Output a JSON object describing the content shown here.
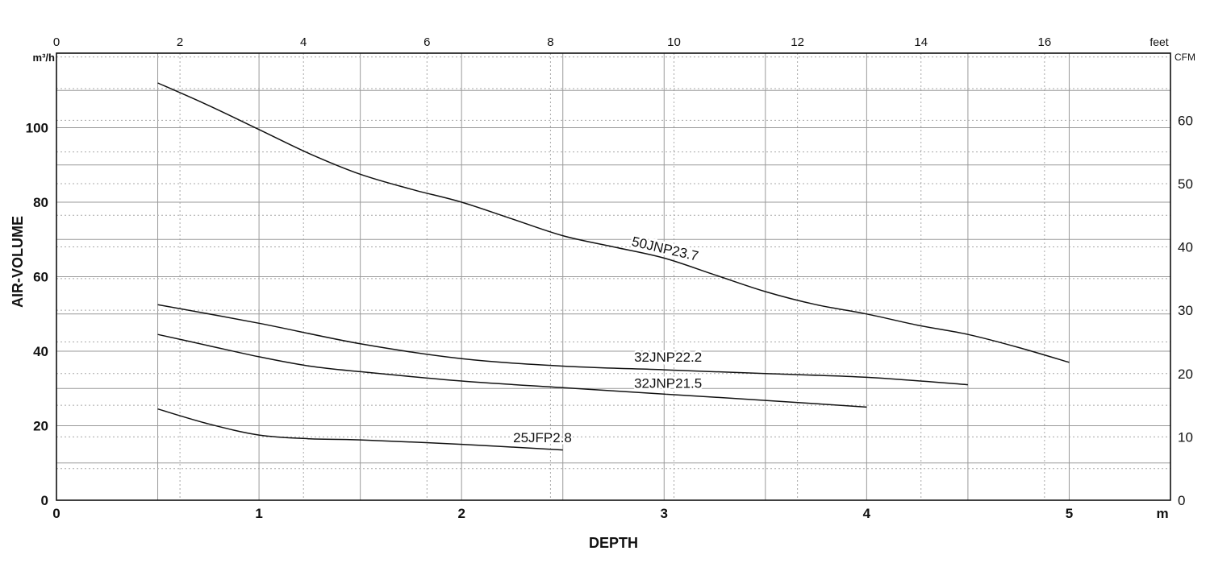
{
  "chart_data": {
    "type": "line",
    "title": "",
    "xlabel": "DEPTH",
    "ylabel": "AIR-VOLUME",
    "x_unit": "m",
    "y_unit": "m³/h",
    "top_unit": "feet",
    "right_unit": "CFM",
    "xlim": [
      0,
      5.5
    ],
    "ylim": [
      0,
      120
    ],
    "top_xlim": [
      0,
      18.04
    ],
    "right_ylim": [
      0,
      70.6
    ],
    "grid": true,
    "legend": "inline labels",
    "x_ticks": [
      0,
      1,
      2,
      3,
      4,
      5
    ],
    "x_tick_labels": [
      "0",
      "1",
      "2",
      "3",
      "4",
      "5"
    ],
    "y_ticks": [
      0,
      20,
      40,
      60,
      80,
      100
    ],
    "y_tick_labels": [
      "0",
      "20",
      "40",
      "60",
      "80",
      "100"
    ],
    "top_ticks": [
      0,
      2,
      4,
      6,
      8,
      10,
      12,
      14,
      16
    ],
    "top_tick_labels": [
      "0",
      "2",
      "4",
      "6",
      "8",
      "10",
      "12",
      "14",
      "16"
    ],
    "right_ticks": [
      0,
      10,
      20,
      30,
      40,
      50,
      60
    ],
    "right_tick_labels": [
      "0",
      "10",
      "20",
      "30",
      "40",
      "50",
      "60"
    ],
    "series": [
      {
        "name": "50JNP23.7",
        "x": [
          0.5,
          0.75,
          1.0,
          1.25,
          1.5,
          1.75,
          2.0,
          2.25,
          2.5,
          2.75,
          3.0,
          3.25,
          3.5,
          3.75,
          4.0,
          4.25,
          4.5,
          4.75,
          5.0
        ],
        "y": [
          112,
          106,
          99.5,
          93,
          87.5,
          83.5,
          80,
          75.5,
          71,
          68,
          65,
          60.5,
          56,
          52.5,
          50,
          47,
          44.5,
          41,
          37
        ]
      },
      {
        "name": "32JNP22.2",
        "x": [
          0.5,
          1.0,
          1.5,
          2.0,
          2.5,
          3.0,
          3.5,
          4.0,
          4.5
        ],
        "y": [
          52.5,
          47.5,
          42,
          38,
          36,
          35,
          34,
          33,
          31
        ]
      },
      {
        "name": "32JNP21.5",
        "x": [
          0.5,
          0.75,
          1.0,
          1.25,
          1.5,
          2.0,
          2.5,
          3.0,
          3.5,
          4.0
        ],
        "y": [
          44.5,
          41.5,
          38.5,
          36,
          34.5,
          32,
          30.2,
          28.5,
          26.8,
          25
        ]
      },
      {
        "name": "25JFP2.8",
        "x": [
          0.5,
          0.75,
          1.0,
          1.25,
          1.5,
          2.0,
          2.5
        ],
        "y": [
          24.5,
          20.5,
          17.5,
          16.5,
          16.2,
          15,
          13.5
        ]
      }
    ]
  }
}
